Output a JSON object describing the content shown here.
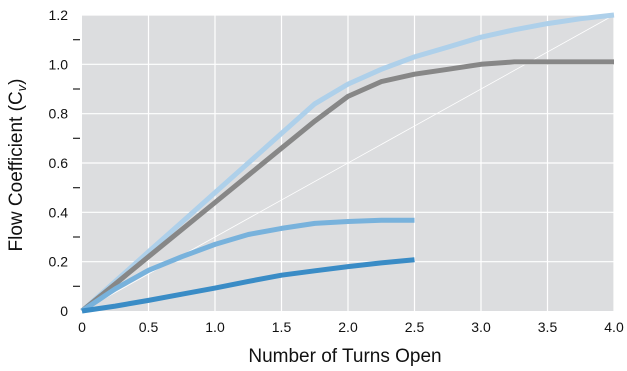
{
  "chart_data": {
    "type": "line",
    "xlabel": "Number of Turns Open",
    "ylabel_main": "Flow Coefficient (C",
    "ylabel_sub": "v",
    "ylabel_close": ")",
    "xlim": [
      0,
      4.0
    ],
    "ylim": [
      0,
      1.2
    ],
    "x_ticks": [
      0,
      0.5,
      1.0,
      1.5,
      2.0,
      2.5,
      3.0,
      3.5,
      4.0
    ],
    "x_tick_labels": [
      "0",
      "0.5",
      "1.0",
      "1.5",
      "2.0",
      "2.5",
      "3.0",
      "3.5",
      "4.0"
    ],
    "y_ticks": [
      0,
      0.2,
      0.4,
      0.6,
      0.8,
      1.0,
      1.2
    ],
    "y_tick_labels": [
      "0",
      "0.2",
      "0.4",
      "0.6",
      "0.8",
      "1.0",
      "1.2"
    ],
    "y_minor_ticks": [
      0.1,
      0.3,
      0.5,
      0.7,
      0.9,
      1.1
    ],
    "grid": true,
    "background_color": "#dcdddf",
    "grid_color": "#ffffff",
    "reference_line": {
      "x": [
        0,
        4.0
      ],
      "y": [
        0,
        1.2
      ],
      "color": "#ffffff"
    },
    "series": [
      {
        "color": "#aed0ea",
        "x": [
          0,
          0.25,
          0.5,
          0.75,
          1.0,
          1.25,
          1.5,
          1.75,
          2.0,
          2.25,
          2.5,
          2.75,
          3.0,
          3.25,
          3.5,
          3.75,
          4.0
        ],
        "y": [
          0,
          0.12,
          0.24,
          0.36,
          0.48,
          0.6,
          0.72,
          0.84,
          0.92,
          0.98,
          1.03,
          1.07,
          1.11,
          1.14,
          1.165,
          1.185,
          1.2
        ]
      },
      {
        "color": "#878787",
        "x": [
          0,
          0.25,
          0.5,
          0.75,
          1.0,
          1.25,
          1.5,
          1.75,
          2.0,
          2.25,
          2.5,
          2.75,
          3.0,
          3.25,
          3.5,
          3.75,
          4.0
        ],
        "y": [
          0,
          0.11,
          0.22,
          0.33,
          0.44,
          0.55,
          0.66,
          0.77,
          0.87,
          0.93,
          0.96,
          0.98,
          1.0,
          1.01,
          1.01,
          1.01,
          1.01
        ]
      },
      {
        "color": "#78b2dc",
        "x": [
          0,
          0.25,
          0.5,
          0.75,
          1.0,
          1.25,
          1.5,
          1.75,
          2.0,
          2.25,
          2.5
        ],
        "y": [
          0,
          0.09,
          0.165,
          0.22,
          0.27,
          0.31,
          0.335,
          0.355,
          0.363,
          0.368,
          0.368
        ]
      },
      {
        "color": "#3a8cc6",
        "x": [
          0,
          0.25,
          0.5,
          0.75,
          1.0,
          1.25,
          1.5,
          1.75,
          2.0,
          2.25,
          2.5
        ],
        "y": [
          0,
          0.02,
          0.043,
          0.068,
          0.093,
          0.12,
          0.145,
          0.163,
          0.18,
          0.195,
          0.208
        ]
      }
    ]
  }
}
